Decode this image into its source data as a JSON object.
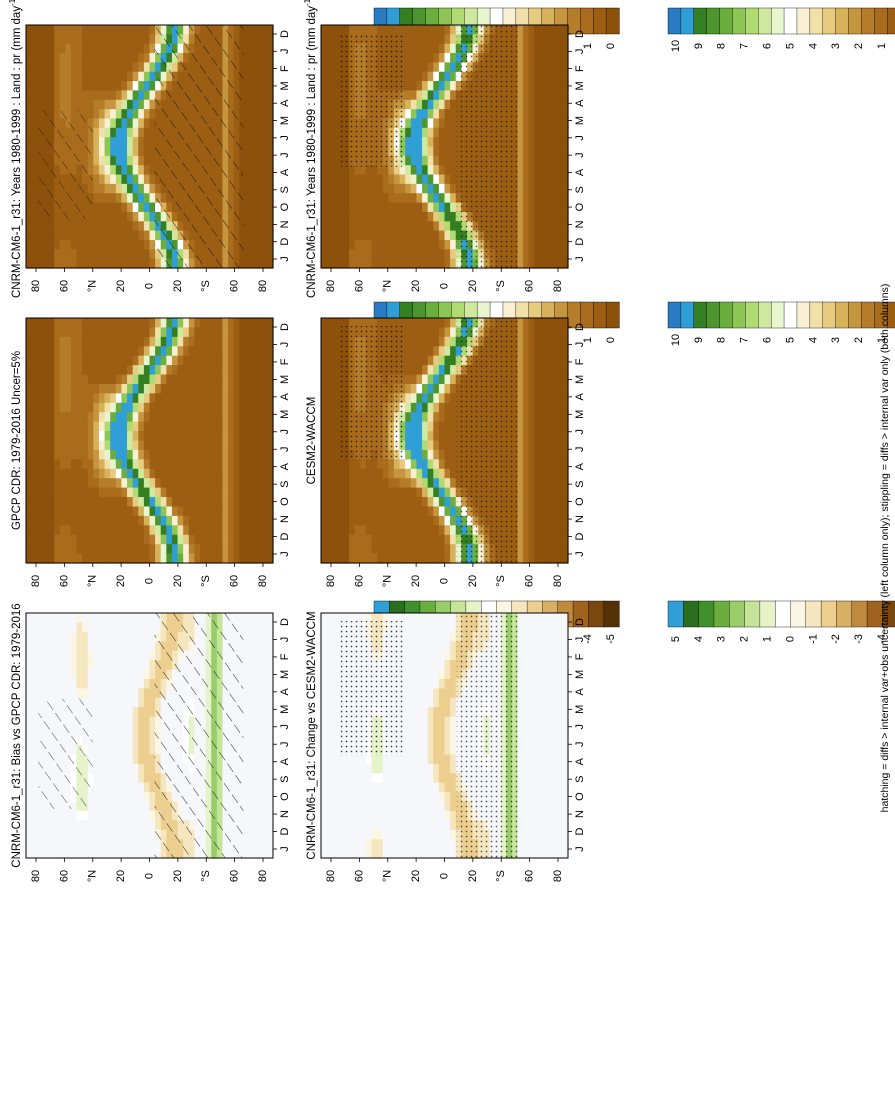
{
  "chart_data": {
    "type": "heatmap",
    "description_free": true,
    "footnote": "hatching = diffs > internal var+obs uncertainty (left column only); stippling = diffs > internal var only (both columns)",
    "months": [
      "D",
      "J",
      "F",
      "M",
      "A",
      "M",
      "J",
      "J",
      "A",
      "S",
      "O",
      "N",
      "D",
      "J"
    ],
    "lat_ticks": [
      "80",
      "60",
      "°N",
      "20",
      "0",
      "20",
      "°S",
      "60",
      "80"
    ],
    "palettes": {
      "precip": [
        "#8c510a",
        "#9b5e12",
        "#a96b1c",
        "#b57c29",
        "#c69540",
        "#d7b25a",
        "#e6cb80",
        "#f1e0aa",
        "#f9f0d4",
        "#ffffff",
        "#e9f5cf",
        "#cfeaa0",
        "#b0db73",
        "#8dc654",
        "#6aae3e",
        "#4d962f",
        "#357f23",
        "#2f9fd6",
        "#2b7bc4"
      ],
      "bias": [
        "#543005",
        "#7a470f",
        "#a0631f",
        "#bf8a3e",
        "#d8b064",
        "#eccf8f",
        "#f6e6bf",
        "#fbf5e4",
        "#ffffff",
        "#e6f3c9",
        "#c5e497",
        "#98cd6a",
        "#6aae3e",
        "#3f8f2c",
        "#2a6e1e",
        "#2f9fd6"
      ]
    },
    "panels": [
      {
        "id": "model-clim-left",
        "title": "CNRM-CM6-1_r31: Years 1980-1999 : Land : pr (mm day",
        "title_sup": "-1",
        "title_tail": ")",
        "kind": "precip",
        "colorbar_labels": [
          "10",
          "9",
          "8",
          "7",
          "6",
          "5",
          "4",
          "3",
          "2",
          "1",
          "0"
        ],
        "overlay": "hatch"
      },
      {
        "id": "model-clim-right",
        "title": "CNRM-CM6-1_r31: Years 1980-1999 : Land : pr (mm day",
        "title_sup": "-1",
        "title_tail": ")",
        "kind": "precip",
        "colorbar_labels": [
          "10",
          "9",
          "8",
          "7",
          "6",
          "5",
          "4",
          "3",
          "2",
          "1",
          "0"
        ],
        "overlay": "stipple"
      },
      {
        "id": "obs-clim",
        "title": "GPCP CDR: 1979-2016 Uncer=5%",
        "kind": "precip",
        "colorbar_labels": [
          "10",
          "9",
          "8",
          "7",
          "6",
          "5",
          "4",
          "3",
          "2",
          "1",
          "0"
        ],
        "overlay": "none"
      },
      {
        "id": "ref-model-clim",
        "title": "CESM2-WACCM",
        "kind": "precip",
        "colorbar_labels": [
          "10",
          "9",
          "8",
          "7",
          "6",
          "5",
          "4",
          "3",
          "2",
          "1",
          "0"
        ],
        "overlay": "stipple"
      },
      {
        "id": "bias",
        "title": "CNRM-CM6-1_r31: Bias vs GPCP CDR: 1979-2016",
        "kind": "bias",
        "colorbar_labels": [
          "5",
          "4",
          "3",
          "2",
          "1",
          "0",
          "-1",
          "-2",
          "-3",
          "-4",
          "-5"
        ],
        "overlay": "hatch"
      },
      {
        "id": "change",
        "title": "CNRM-CM6-1_r31: Change vs CESM2-WACCM",
        "kind": "bias",
        "colorbar_labels": [
          "5",
          "4",
          "3",
          "2",
          "1",
          "0",
          "-1",
          "-2",
          "-3",
          "-4",
          "-5"
        ],
        "overlay": "stipple"
      }
    ]
  }
}
